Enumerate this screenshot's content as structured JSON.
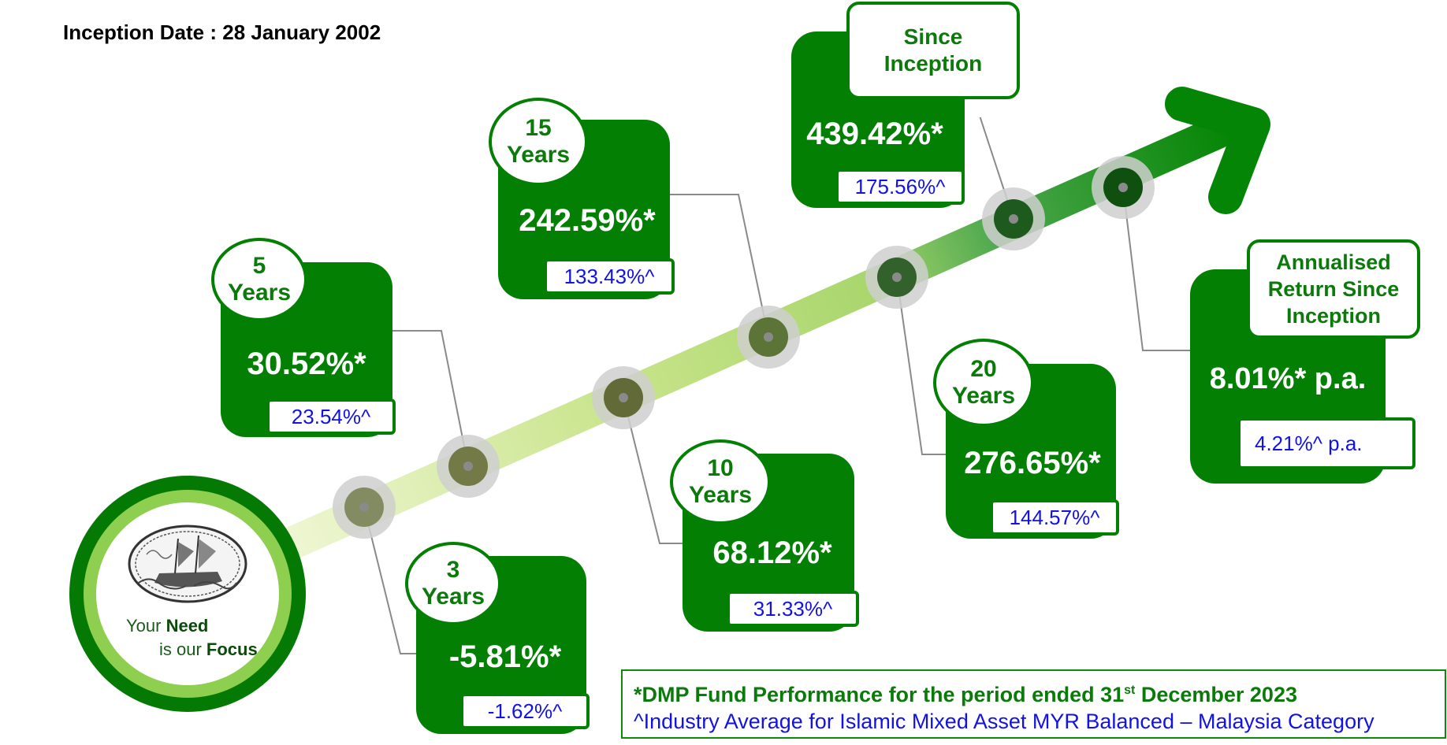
{
  "inception_label": "Inception Date : 28 January 2002",
  "logo": {
    "line1_prefix": "Your ",
    "line1_bold": "Need",
    "line2_prefix": "is our ",
    "line2_bold": "Focus"
  },
  "periods": [
    {
      "id": "3y",
      "label_line1": "3",
      "label_line2": "Years",
      "fund_return": "-5.81%*",
      "industry_avg": "-1.62%^"
    },
    {
      "id": "5y",
      "label_line1": "5",
      "label_line2": "Years",
      "fund_return": "30.52%*",
      "industry_avg": "23.54%^"
    },
    {
      "id": "10y",
      "label_line1": "10",
      "label_line2": "Years",
      "fund_return": "68.12%*",
      "industry_avg": "31.33%^"
    },
    {
      "id": "15y",
      "label_line1": "15",
      "label_line2": "Years",
      "fund_return": "242.59%*",
      "industry_avg": "133.43%^"
    },
    {
      "id": "20y",
      "label_line1": "20",
      "label_line2": "Years",
      "fund_return": "276.65%*",
      "industry_avg": "144.57%^"
    },
    {
      "id": "si",
      "label_line1": "Since",
      "label_line2": "Inception",
      "fund_return": "439.42%*",
      "industry_avg": "175.56%^"
    }
  ],
  "annualised": {
    "label_line1": "Annualised",
    "label_line2": "Return Since",
    "label_line3": "Inception",
    "fund_return": "8.01%* p.a.",
    "industry_avg": "4.21%^ p.a."
  },
  "notes": {
    "line1_text": "*DMP Fund Performance for the period ended 31",
    "line1_sup": "st",
    "line1_tail": " December 2023",
    "line2": "^Industry Average for Islamic Mixed Asset MYR Balanced – Malaysia Category"
  },
  "colors": {
    "box_green": "#038003",
    "label_green": "#0b7a0b",
    "industry_blue": "#1212e6",
    "arrow_light": "#d8eaa0",
    "arrow_mid": "#a9d66d",
    "arrow_dark": "#2e8f2e"
  }
}
